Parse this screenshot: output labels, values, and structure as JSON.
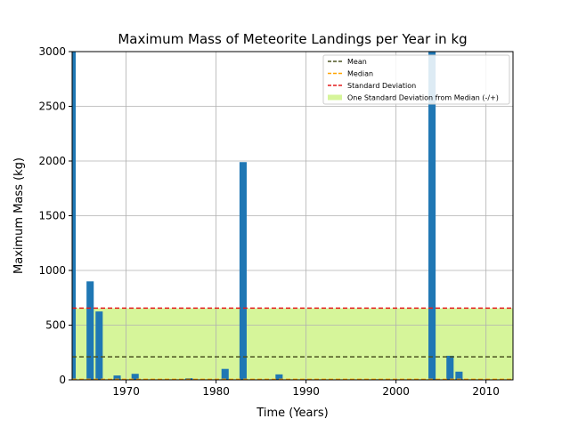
{
  "chart_data": {
    "type": "bar",
    "title": "Maximum Mass of Meteorite Landings per Year in kg",
    "xlabel": "Time (Years)",
    "ylabel": "Maximum Mass (kg)",
    "xlim": [
      1964,
      2013
    ],
    "ylim": [
      0,
      3000
    ],
    "xticks": [
      1970,
      1980,
      1990,
      2000,
      2010
    ],
    "yticks": [
      0,
      500,
      1000,
      1500,
      2000,
      2500,
      3000
    ],
    "grid": true,
    "legend_position": "top-right",
    "bar_color": "#1f77b4",
    "x": [
      1964,
      1966,
      1967,
      1969,
      1971,
      1977,
      1981,
      1983,
      1987,
      1990,
      1998,
      2004,
      2006,
      2007
    ],
    "values": [
      3000,
      900,
      625,
      40,
      55,
      15,
      100,
      1990,
      50,
      5,
      5,
      3000,
      220,
      75
    ],
    "mean": 210,
    "median": 5,
    "standard_deviation": 655,
    "band": [
      0,
      655
    ],
    "legend": [
      {
        "label": "Mean",
        "style": "dashed",
        "color": "#4b5320"
      },
      {
        "label": "Median",
        "style": "dashed",
        "color": "#ffa500"
      },
      {
        "label": "Standard Deviation",
        "style": "dashed",
        "color": "#e41a1c"
      },
      {
        "label": "One Standard Deviation from Median (-/+)",
        "style": "patch",
        "color": "#d6f59a"
      }
    ]
  }
}
